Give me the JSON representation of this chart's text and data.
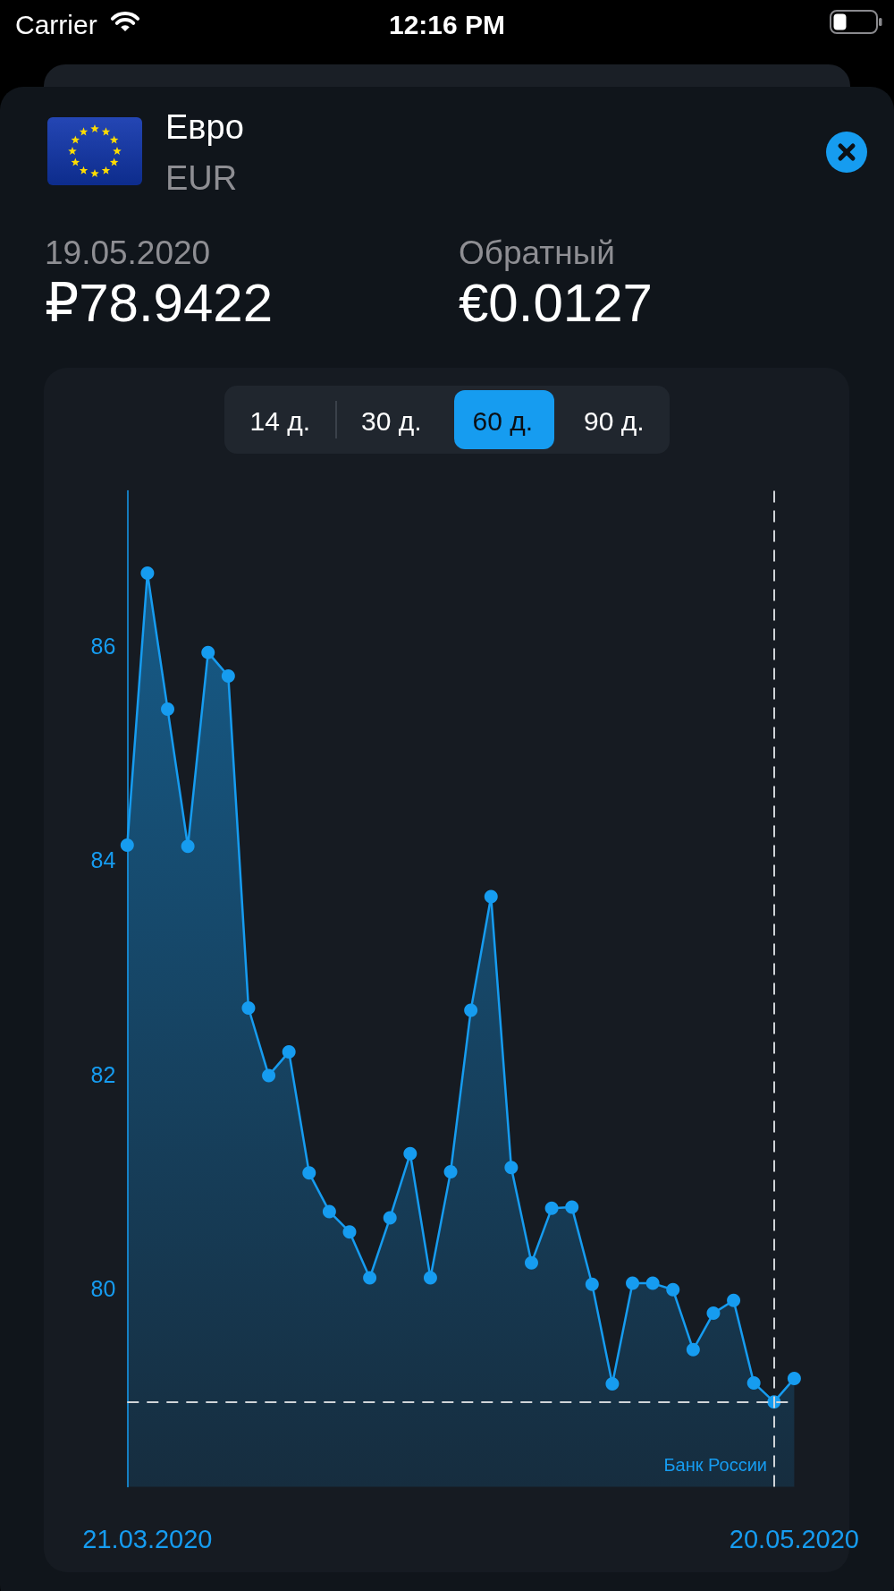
{
  "chart_data": {
    "type": "area",
    "title": "Евро",
    "subtitle": "EUR",
    "annotations": [
      "Carrier",
      "12:16 PM",
      "19.05.2020",
      "₽78.9422",
      "Обратный",
      "€0.0127",
      "14 д.",
      "30 д.",
      "60 д.",
      "90 д.",
      "Банк России"
    ],
    "categories": [
      null,
      "21.03.2020",
      null,
      null,
      null,
      null,
      null,
      null,
      null,
      null,
      null,
      null,
      null,
      null,
      null,
      null,
      null,
      null,
      null,
      null,
      null,
      null,
      null,
      null,
      null,
      null,
      null,
      null,
      null,
      null,
      null,
      null,
      null,
      "20.05.2020"
    ],
    "series": [
      {
        "color": "#169cf0",
        "values": [
          84.14,
          86.68,
          85.41,
          84.13,
          85.94,
          85.72,
          82.62,
          81.99,
          82.21,
          81.08,
          80.72,
          80.53,
          80.1,
          80.66,
          81.26,
          80.1,
          81.09,
          82.6,
          83.66,
          81.13,
          80.24,
          80.75,
          80.76,
          80.04,
          79.11,
          80.05,
          80.05,
          79.99,
          79.43,
          79.77,
          79.89,
          79.12,
          78.9422,
          79.16
        ]
      }
    ],
    "ylim": [
      78.15,
      87.45
    ],
    "yticks": [
      80,
      82,
      84,
      86
    ],
    "marker": "circle",
    "ref_lines": [
      {
        "axis": "y",
        "value": 78.9422,
        "color": "#d0d4d8",
        "line_style": "dashed"
      }
    ]
  }
}
